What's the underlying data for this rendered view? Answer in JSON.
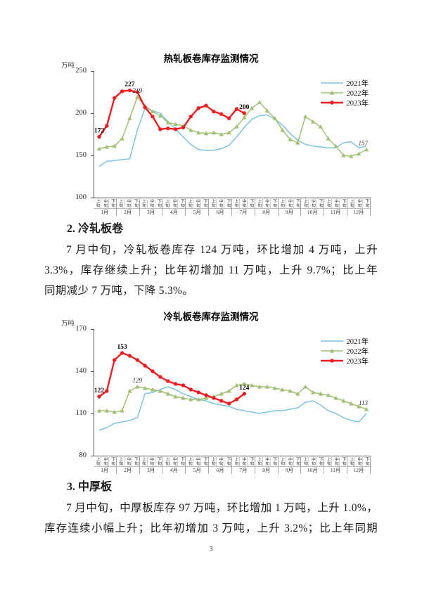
{
  "page_number": "3",
  "sections": [
    {
      "heading": "2. 冷轧板卷",
      "paragraph_lines": [
        "7 月中旬，冷轧板卷库存 124 万吨，环比增加 4 万吨，上升",
        "3.3%，库存继续上升；比年初增加 11 万吨，上升 9.7%；比上年",
        "同期减少 7 万吨，下降 5.3%。"
      ]
    },
    {
      "heading": "3. 中厚板",
      "paragraph_lines": [
        "7 月中旬，中厚板库存 97 万吨，环比增加 1 万吨，上升 1.0%，",
        "库存连续小幅上升；比年初增加 3 万吨，上升 3.2%；比上年同期"
      ]
    }
  ],
  "chart_data": [
    {
      "type": "line",
      "title": "热轧板卷库存监测情况",
      "unit_label": "万吨",
      "ylim": [
        100,
        250
      ],
      "yticks": [
        250,
        200,
        150,
        100
      ],
      "grid": false,
      "legend_position": "top-right",
      "months": [
        "1月",
        "2月",
        "3月",
        "4月",
        "5月",
        "6月",
        "7月",
        "8月",
        "9月",
        "10月",
        "11月",
        "12月"
      ],
      "periods": [
        "上旬",
        "中旬",
        "下旬"
      ],
      "series": [
        {
          "name": "2021年",
          "color": "#7fc2dc",
          "marker": "none",
          "values": [
            137,
            143,
            144,
            145,
            146,
            180,
            206,
            203,
            200,
            190,
            181,
            172,
            163,
            157,
            156,
            156,
            158,
            162,
            172,
            183,
            193,
            197,
            198,
            193,
            186,
            176,
            168,
            163,
            161,
            160,
            159,
            159,
            165,
            166,
            159,
            161
          ]
        },
        {
          "name": "2022年",
          "color": "#a2bf74",
          "marker": "triangle",
          "values": [
            158,
            160,
            161,
            170,
            194,
            219,
            209,
            202,
            197,
            189,
            187,
            185,
            180,
            177,
            176,
            177,
            175,
            177,
            184,
            195,
            206,
            213,
            203,
            194,
            180,
            169,
            165,
            196,
            190,
            184,
            170,
            161,
            150,
            149,
            152,
            157
          ]
        },
        {
          "name": "2023年",
          "color": "#ee1d23",
          "marker": "circle",
          "values": [
            172,
            185,
            218,
            226,
            227,
            225,
            207,
            196,
            181,
            182,
            181,
            183,
            196,
            206,
            209,
            202,
            199,
            194,
            205,
            200
          ]
        }
      ],
      "point_labels": [
        {
          "series": "2023年",
          "index": 0,
          "text": "172",
          "style": "bold"
        },
        {
          "series": "2023年",
          "index": 4,
          "text": "227",
          "style": "bold"
        },
        {
          "series": "2022年",
          "index": 5,
          "text": "219",
          "style": "italic"
        },
        {
          "series": "2023年",
          "index": 19,
          "text": "200",
          "style": "bold"
        },
        {
          "series": "2022年",
          "index": 35,
          "text": "157",
          "style": "italic"
        }
      ]
    },
    {
      "type": "line",
      "title": "冷轧板卷库存监测情况",
      "unit_label": "万吨",
      "ylim": [
        80,
        170
      ],
      "yticks": [
        170,
        140,
        110,
        80
      ],
      "grid": false,
      "legend_position": "top-right",
      "months": [
        "1月",
        "2月",
        "3月",
        "4月",
        "5月",
        "6月",
        "7月",
        "8月",
        "9月",
        "10月",
        "11月",
        "12月"
      ],
      "periods": [
        "上旬",
        "中旬",
        "下旬"
      ],
      "series": [
        {
          "name": "2021年",
          "color": "#7fc2dc",
          "marker": "none",
          "values": [
            98,
            100,
            103,
            104,
            105,
            107,
            124,
            125,
            127,
            129,
            127,
            124,
            122,
            120,
            119,
            117,
            116,
            115,
            113,
            112,
            111,
            110,
            111,
            112,
            112,
            113,
            114,
            118,
            119,
            116,
            112,
            110,
            107,
            105,
            104,
            110
          ]
        },
        {
          "name": "2022年",
          "color": "#a2bf74",
          "marker": "triangle",
          "values": [
            112,
            112,
            111,
            112,
            126,
            129,
            128,
            127,
            126,
            124,
            122,
            121,
            120,
            120,
            121,
            122,
            124,
            126,
            130,
            131,
            130,
            129,
            129,
            128,
            127,
            126,
            124,
            129,
            125,
            124,
            123,
            121,
            119,
            117,
            115,
            113
          ]
        },
        {
          "name": "2023年",
          "color": "#ee1d23",
          "marker": "circle",
          "values": [
            122,
            126,
            148,
            153,
            151,
            148,
            144,
            140,
            136,
            133,
            131,
            130,
            127,
            125,
            123,
            121,
            119,
            117,
            120,
            124
          ]
        }
      ],
      "point_labels": [
        {
          "series": "2023年",
          "index": 0,
          "text": "122",
          "style": "bold"
        },
        {
          "series": "2023年",
          "index": 3,
          "text": "153",
          "style": "bold"
        },
        {
          "series": "2022年",
          "index": 5,
          "text": "129",
          "style": "italic"
        },
        {
          "series": "2023年",
          "index": 19,
          "text": "124",
          "style": "bold"
        },
        {
          "series": "2022年",
          "index": 35,
          "text": "113",
          "style": "italic"
        }
      ]
    }
  ]
}
